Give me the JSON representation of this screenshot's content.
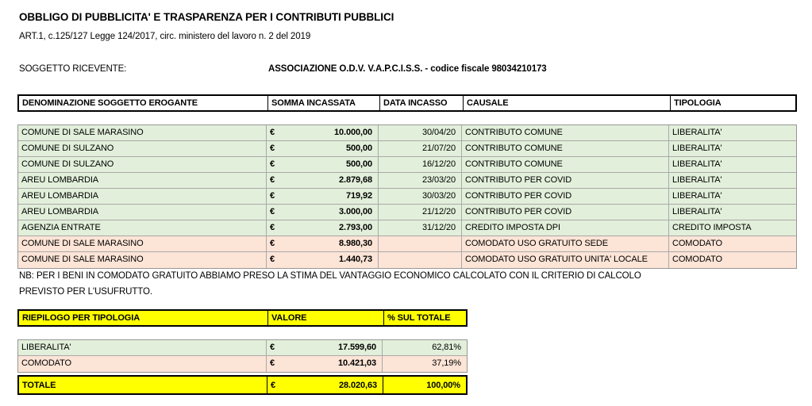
{
  "colors": {
    "green": "#e2efda",
    "pink": "#fce4d6",
    "yellow": "#ffff00"
  },
  "header": {
    "title": "OBBLIGO DI PUBBLICITA' E TRASPARENZA PER I CONTRIBUTI PUBBLICI",
    "subtitle": "ART.1, c.125/127 Legge 124/2017, circ. ministero del lavoro n. 2 del 2019",
    "recipient_label": "SOGGETTO RICEVENTE:",
    "recipient_value": "ASSOCIAZIONE O.D.V.  V.A.P.C.I.S.S. - codice fiscale 98034210173"
  },
  "main_table": {
    "currency_symbol": "€",
    "headers": [
      "DENOMINAZIONE SOGGETTO EROGANTE",
      "SOMMA INCASSATA",
      "DATA INCASSO",
      "CAUSALE",
      "TIPOLOGIA"
    ],
    "rows": [
      {
        "ente": "COMUNE DI SALE MARASINO",
        "somma": "10.000,00",
        "data": "30/04/20",
        "causale": "CONTRIBUTO COMUNE",
        "tipologia": "LIBERALITA'",
        "shade": "green"
      },
      {
        "ente": "COMUNE DI SULZANO",
        "somma": "500,00",
        "data": "21/07/20",
        "causale": "CONTRIBUTO COMUNE",
        "tipologia": "LIBERALITA'",
        "shade": "green"
      },
      {
        "ente": "COMUNE DI SULZANO",
        "somma": "500,00",
        "data": "16/12/20",
        "causale": "CONTRIBUTO COMUNE",
        "tipologia": "LIBERALITA'",
        "shade": "green"
      },
      {
        "ente": "AREU LOMBARDIA",
        "somma": "2.879,68",
        "data": "23/03/20",
        "causale": "CONTRIBUTO PER COVID",
        "tipologia": "LIBERALITA'",
        "shade": "green"
      },
      {
        "ente": "AREU LOMBARDIA",
        "somma": "719,92",
        "data": "30/03/20",
        "causale": "CONTRIBUTO PER COVID",
        "tipologia": "LIBERALITA'",
        "shade": "green"
      },
      {
        "ente": "AREU LOMBARDIA",
        "somma": "3.000,00",
        "data": "21/12/20",
        "causale": "CONTRIBUTO PER COVID",
        "tipologia": "LIBERALITA'",
        "shade": "green"
      },
      {
        "ente": "AGENZIA ENTRATE",
        "somma": "2.793,00",
        "data": "31/12/20",
        "causale": "CREDITO IMPOSTA DPI",
        "tipologia": "CREDITO IMPOSTA",
        "shade": "green"
      },
      {
        "ente": "COMUNE DI SALE MARASINO",
        "somma": "8.980,30",
        "data": "",
        "causale": "COMODATO USO GRATUITO SEDE",
        "tipologia": "COMODATO",
        "shade": "pink"
      },
      {
        "ente": "COMUNE DI SALE MARASINO",
        "somma": "1.440,73",
        "data": "",
        "causale": "COMODATO USO GRATUITO UNITA' LOCALE",
        "tipologia": "COMODATO",
        "shade": "pink"
      }
    ]
  },
  "note": {
    "line1": "NB: PER I BENI IN COMODATO GRATUITO ABBIAMO PRESO LA STIMA DEL VANTAGGIO ECONOMICO CALCOLATO CON IL CRITERIO DI CALCOLO",
    "line2": "PREVISTO PER L'USUFRUTTO."
  },
  "summary_table": {
    "currency_symbol": "€",
    "headers": [
      "RIEPILOGO PER TIPOLOGIA",
      "VALORE",
      "% SUL TOTALE"
    ],
    "rows": [
      {
        "label": "LIBERALITA'",
        "valore": "17.599,60",
        "percent": "62,81%",
        "shade": "green"
      },
      {
        "label": "COMODATO",
        "valore": "10.421,03",
        "percent": "37,19%",
        "shade": "pink"
      }
    ],
    "total": {
      "label": "TOTALE",
      "valore": "28.020,63",
      "percent": "100,00%"
    }
  }
}
